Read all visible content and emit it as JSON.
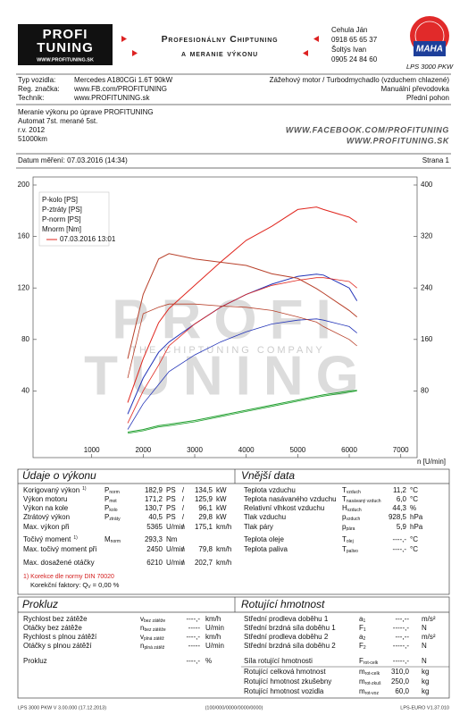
{
  "header": {
    "logo_top": "PROFI",
    "logo_bottom": "TUNING",
    "logo_url": "WWW.PROFITUNING.SK",
    "title1": "Profesionálny Chiptuning",
    "title2": "a meranie výkonu",
    "contacts": [
      "Cehula Ján",
      "0918 65 65 37",
      "Šoltýs Ivan",
      "0905 24 84 60"
    ],
    "maha": "MAHA",
    "device": "LPS 3000 PKW"
  },
  "vehicle": {
    "rows": [
      [
        "Typ vozidla:",
        "Mercedes A180CGi 1.6T 90kW"
      ],
      [
        "Reg. značka:",
        "www.FB.com/PROFITUNING"
      ],
      [
        "Technik:",
        "www.PROFITUNING.sk"
      ]
    ],
    "right": [
      "Zážehový motor / Turbodmychadlo (vzduchem chlazené)",
      "Manuální převodovka",
      "Přední pohon"
    ]
  },
  "notes": {
    "lines": [
      "Meranie výkonu po úprave PROFITUNING",
      "Automat 7st. merané 5st.",
      "r.v. 2012",
      "51000km"
    ],
    "links": [
      "WWW.FACEBOOK.COM/PROFITUNING",
      "WWW.PROFITUNING.SK"
    ]
  },
  "date": {
    "label": "Datum měření: 07.03.2016 (14:34)",
    "page": "Strana 1"
  },
  "watermark": {
    "line1": "PROFI",
    "tagline": "THE CHIPTUNING COMPANY",
    "line2": "TUNING"
  },
  "chart_data": {
    "type": "line",
    "x_label": "n [U/min]",
    "x": [
      1700,
      2000,
      2300,
      2500,
      3000,
      3500,
      4000,
      4500,
      5000,
      5365,
      5500,
      6000,
      6150
    ],
    "xlim": [
      0,
      7300
    ],
    "xticks": [
      1000,
      2000,
      3000,
      4000,
      5000,
      6000,
      7000
    ],
    "ylim": [
      0,
      200
    ],
    "yticks": [
      40,
      80,
      120,
      160,
      200
    ],
    "y2lim": [
      0,
      400
    ],
    "y2ticks": [
      80,
      160,
      240,
      320,
      400
    ],
    "legend_note": "07.03.2016 13:01",
    "series": [
      {
        "name": "P-kolo [PS]",
        "color": "#2233b8",
        "values": [
          22,
          50,
          70,
          78,
          92,
          105,
          115,
          123,
          129,
          130.7,
          130,
          120,
          110
        ]
      },
      {
        "name": "P-ztráty [PS]",
        "color": "#22a030",
        "values": [
          8,
          10,
          13,
          14,
          17,
          21,
          25,
          29,
          33,
          36,
          37,
          40,
          40.5
        ]
      },
      {
        "name": "P-norm [PS]",
        "color": "#e0261e",
        "values": [
          31,
          65,
          93,
          104,
          122,
          140,
          157,
          168,
          181,
          182.9,
          181,
          175,
          171
        ]
      },
      {
        "name": "Mnorm [Nm]",
        "color": "#b8402a",
        "axis": "y2",
        "values": [
          130,
          230,
          285,
          293.3,
          285,
          280,
          275,
          262,
          255,
          239,
          232,
          205,
          195
        ]
      },
      {
        "color": "#2233b8",
        "values": [
          10,
          30,
          45,
          55,
          68,
          78,
          86,
          92,
          95,
          96,
          95,
          90,
          85
        ]
      },
      {
        "color": "#22a030",
        "values": [
          7,
          9,
          12,
          13,
          16,
          20,
          24,
          28,
          32,
          35,
          36,
          39,
          40
        ]
      },
      {
        "color": "#e0261e",
        "values": [
          15,
          40,
          60,
          75,
          92,
          105,
          115,
          122,
          126,
          128,
          128,
          125,
          120
        ]
      },
      {
        "color": "#b8402a",
        "axis": "y2",
        "values": [
          100,
          200,
          210,
          215,
          215,
          212,
          210,
          205,
          195,
          187,
          180,
          160,
          150
        ]
      }
    ]
  },
  "performance": {
    "title": "Údaje o výkonu",
    "rows": [
      {
        "label": "Korigovaný výkon",
        "ref": "1)",
        "color": "#d42020",
        "symbol": "P",
        "sub": "norm",
        "value": "182,9",
        "unit": "PS",
        "sep": "/",
        "value2": "134,5",
        "unit2": "kW"
      },
      {
        "label": "Výkon motoru",
        "color": "#d42020",
        "symbol": "P",
        "sub": "mot",
        "value": "171,2",
        "unit": "PS",
        "sep": "/",
        "value2": "125,9",
        "unit2": "kW"
      },
      {
        "label": "Výkon na kole",
        "color": "#2233b8",
        "symbol": "P",
        "sub": "kolo",
        "value": "130,7",
        "unit": "PS",
        "sep": "/",
        "value2": "96,1",
        "unit2": "kW"
      },
      {
        "label": "Ztrátový výkon",
        "color": "#22a030",
        "symbol": "P",
        "sub": "ztráty",
        "value": "40,5",
        "unit": "PS",
        "sep": "/",
        "value2": "29,8",
        "unit2": "kW"
      },
      {
        "label": "Max. výkon při",
        "value": "5365",
        "unit": "U/min",
        "sep": "/",
        "value2": "175,1",
        "unit2": "km/h"
      },
      {
        "label": "Točivý moment",
        "ref": "1)",
        "color": "#d42020",
        "symbol": "M",
        "sub": "norm",
        "value": "293,3",
        "unit": "Nm"
      },
      {
        "label": "Max. točivý moment při",
        "value": "2450",
        "unit": "U/min",
        "sep": "/",
        "value2": "79,8",
        "unit2": "km/h"
      },
      {
        "label": "Max. dosažené otáčky",
        "value": "6210",
        "unit": "U/min",
        "sep": "/",
        "value2": "202,7",
        "unit2": "km/h"
      }
    ],
    "note": "1) Korekce dle normy DIN 70020",
    "factor": {
      "label": "Korekční faktory: ",
      "symbol": "Q",
      "sub": "V",
      "value": " =  0,00 %"
    }
  },
  "external": {
    "title": "Vnější data",
    "rows": [
      {
        "label": "Teplota vzduchu",
        "symbol": "T",
        "sub": "vzduch",
        "value": "11,2",
        "unit": "°C"
      },
      {
        "label": "Teplota nasávaného vzduchu",
        "symbol": "T",
        "sub": "nasávaný vzduch",
        "value": "6,0",
        "unit": "°C"
      },
      {
        "label": "Relativní vlhkost vzduchu",
        "symbol": "H",
        "sub": "vzduch",
        "value": "44,3",
        "unit": "%"
      },
      {
        "label": "Tlak vzduchu",
        "symbol": "p",
        "sub": "vzduch",
        "value": "928,5",
        "unit": "hPa"
      },
      {
        "label": "Tlak páry",
        "symbol": "p",
        "sub": "pára",
        "value": "5,9",
        "unit": "hPa"
      },
      {
        "label": "Teplota oleje",
        "symbol": "T",
        "sub": "olej",
        "value": "----,-",
        "unit": "°C"
      },
      {
        "label": "Teplota paliva",
        "symbol": "T",
        "sub": "palivo",
        "value": "----,-",
        "unit": "°C"
      }
    ]
  },
  "slip": {
    "title": "Prokluz",
    "rows": [
      {
        "label": "Rychlost bez zátěže",
        "symbol": "v",
        "sub": "bez zátěže",
        "value": "----,-",
        "unit": "km/h"
      },
      {
        "label": "Otáčky bez zátěže",
        "symbol": "n",
        "sub": "bez zátěže",
        "value": "-----",
        "unit": "U/min"
      },
      {
        "label": "Rychlost s plnou zátěží",
        "symbol": "v",
        "sub": "plná zátěž",
        "value": "----,-",
        "unit": "km/h"
      },
      {
        "label": "Otáčky s plnou zátěží",
        "symbol": "n",
        "sub": "plná zátěž",
        "value": "-----",
        "unit": "U/min"
      },
      {
        "label": "Prokluz",
        "value": "----,-",
        "unit": "%"
      }
    ]
  },
  "rotating": {
    "title": "Rotující hmotnost",
    "rows": [
      {
        "label": "Střední prodleva doběhu 1",
        "symbol": "a",
        "sub": "1",
        "value": "---,--",
        "unit": "m/s²"
      },
      {
        "label": "Střední brzdná síla doběhu 1",
        "symbol": "F",
        "sub": "1",
        "value": "-----,-",
        "unit": "N"
      },
      {
        "label": "Střední prodleva doběhu 2",
        "symbol": "a",
        "sub": "2",
        "value": "---,--",
        "unit": "m/s²"
      },
      {
        "label": "Střední brzdná síla doběhu 2",
        "symbol": "F",
        "sub": "2",
        "value": "-----,-",
        "unit": "N"
      },
      {
        "label": "Síla rotující hmotnosti",
        "symbol": "F",
        "sub": "rot-celk",
        "value": "-----,-",
        "unit": "N"
      },
      {
        "label": "Rotující celková hmotnost",
        "symbol": "m",
        "sub": "rot-celk",
        "value": "310,0",
        "unit": "kg"
      },
      {
        "label": "Rotující hmotnost zkušebny",
        "symbol": "m",
        "sub": "rot-zkuš",
        "value": "250,0",
        "unit": "kg"
      },
      {
        "label": "Rotující hmotnost vozidla",
        "symbol": "m",
        "sub": "rot-voz",
        "value": "60,0",
        "unit": "kg"
      }
    ]
  },
  "footer": [
    "LPS 3000 PKW V 3.00.000 (17.12.2013)",
    "(100/000/0000/0000/0000)",
    "LPS-EURO V1.37.010"
  ]
}
